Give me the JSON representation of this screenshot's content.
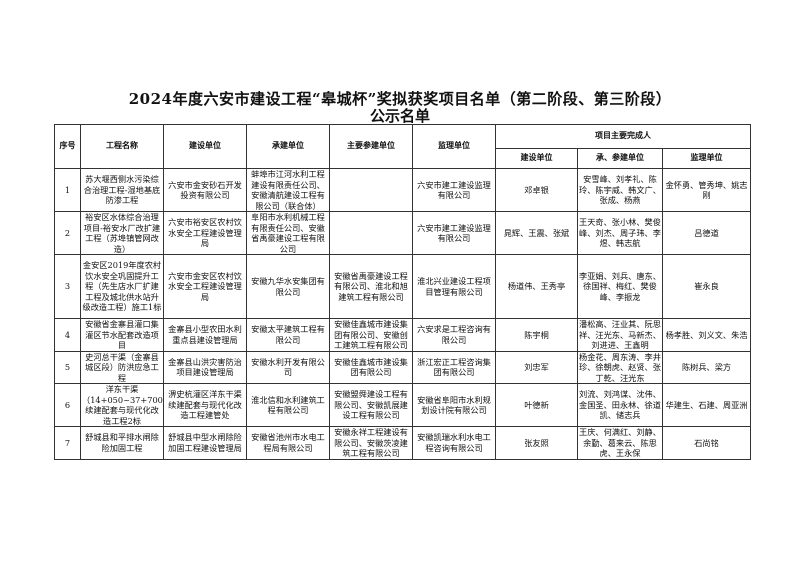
{
  "title": "2024年度六安市建设工程“皋城杯”奖拟获奖项目名单（第二阶段、第三阶段）",
  "subtitle": "公示名单",
  "headers": {
    "index": "序号",
    "project": "工程名称",
    "owner": "建设单位",
    "contractor": "承建单位",
    "participants": "主要参建单位",
    "supervisor": "监理单位",
    "persons_group": "项目主要完成人",
    "p_owner": "建设单位",
    "p_contractor": "承、参建单位",
    "p_supervisor": "监理单位"
  },
  "rows": [
    {
      "index": "1",
      "project": "苏大堰西侧水污染综合治理工程-湿地基底防渗工程",
      "owner": "六安市金安砂石开发投资有限公司",
      "contractor": "蚌埠市江河水利工程建设有限责任公司、安徽清航建设工程有限公司（联合体）",
      "participants": "",
      "supervisor": "六安市建工建设监理有限公司",
      "p_owner": "邓卓银",
      "p_contractor": "安雪峰、刘孝礼、陈玲、陈宇威、韩文广、张成、杨燕",
      "p_supervisor": "金怀勇、管秀坤、姚志刚"
    },
    {
      "index": "2",
      "project": "裕安区水体综合治理项目-裕安水厂改扩建工程（苏埠镇管网改造）",
      "owner": "六安市裕安区农村饮水安全工程建设管理局",
      "contractor": "阜阳市水利机械工程有限责任公司、安徽省禹豪建设工程有限公司",
      "participants": "",
      "supervisor": "六安市建工建设监理有限公司",
      "p_owner": "晁辉、王震、张斌",
      "p_contractor": "王天奇、张小林、樊俊峰、刘杰、周子玮、李煜、韩志航",
      "p_supervisor": "吕德道"
    },
    {
      "index": "3",
      "project": "金安区2019年度农村饮水安全巩固提升工程（先生店水厂扩建工程及城北供水站升级改造工程）施工1标",
      "owner": "六安市金安区农村饮水安全工程建设管理局",
      "contractor": "安徽九华水安集团有限公司",
      "participants": "安徽省禹豪建设工程有限公司、淮北和旭建筑工程有限公司",
      "supervisor": "淮北兴业建设工程项目管理有限公司",
      "p_owner": "杨道伟、王秀亭",
      "p_contractor": "李亚娟、刘兵、唐东、徐国祥、梅红、樊俊峰、李振龙",
      "p_supervisor": "崔永良"
    },
    {
      "index": "4",
      "project": "安徽省金寨县灌口集灌区节水配套改造项目",
      "owner": "金寨县小型农田水利重点县建设管理局",
      "contractor": "安徽太平建筑工程有限公司",
      "participants": "安徽佳鑫城市建设集团有限公司、安徽创工建筑工程有限公司",
      "supervisor": "六安求是工程咨询有限公司",
      "p_owner": "陈宇桐",
      "p_contractor": "潘松高、汪业其、阮思祥、汪光东、马新杰、刘进进、王鑫明",
      "p_supervisor": "杨孝胜、刘义文、朱浩"
    },
    {
      "index": "5",
      "project": "史河总干渠（金寨县城区段）防洪应急工程",
      "owner": "金寨县山洪灾害防治项目建设管理局",
      "contractor": "安徽水利开发有限公司",
      "participants": "安徽佳鑫城市建设集团有限公司",
      "supervisor": "浙江宏正工程咨询集团有限公司",
      "p_owner": "刘忠军",
      "p_contractor": "杨金花、周东涛、李井珍、徐朝虎、赵贤、张丁乾、汪光东",
      "p_supervisor": "陈树兵、梁方"
    },
    {
      "index": "6",
      "project": "洋东干渠（14+050~37+700）续建配套与现代化改造工程2标",
      "owner": "淠史杭灌区洋东干渠续建配套与现代化改造工程建管处",
      "contractor": "淮北信和水利建筑工程有限公司",
      "participants": "安徽盟舜建设工程有限公司、安徽凯展建设工程有限公司",
      "supervisor": "安徽省阜阳市水利规划设计院有限公司",
      "p_owner": "叶德新",
      "p_contractor": "刘流、刘鸿谋、沈伟、金国圣、田永林、徐道凯、储志兵",
      "p_supervisor": "华建生、石建、周亚洲"
    },
    {
      "index": "7",
      "project": "舒城县和平排水闸除险加固工程",
      "owner": "舒城县中型水闸除险加固工程建设管理局",
      "contractor": "安徽省池州市水电工程局有限公司",
      "participants": "安徽永祥工程建设有限公司、安徽茨凌建筑工程有限公司",
      "supervisor": "安徽凯瑞水利水电工程咨询有限公司",
      "p_owner": "张友照",
      "p_contractor": "王庆、何满红、刘静、余勤、葛来云、陈思虎、王永保",
      "p_supervisor": "石尚铭"
    }
  ]
}
